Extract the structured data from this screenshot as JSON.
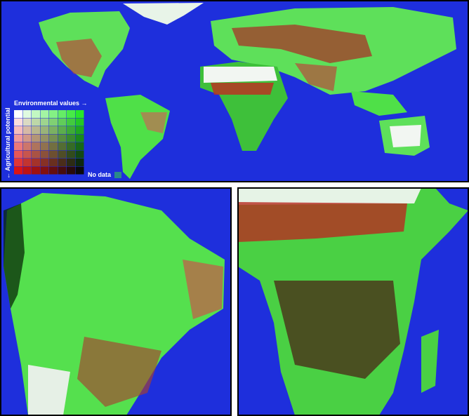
{
  "legend": {
    "x_label": "Environmental values →",
    "y_label": "← Agricultural potential",
    "no_data": "No data"
  }
}
